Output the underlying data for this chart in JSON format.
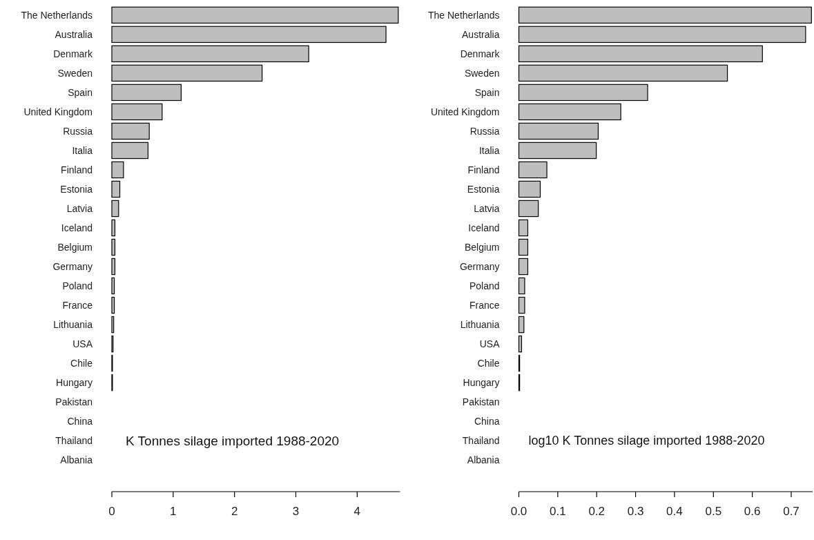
{
  "chart_data": [
    {
      "type": "bar",
      "orientation": "horizontal",
      "categories": [
        "The Netherlands",
        "Australia",
        "Denmark",
        "Sweden",
        "Spain",
        "United Kingdom",
        "Russia",
        "Italia",
        "Finland",
        "Estonia",
        "Latvia",
        "Iceland",
        "Belgium",
        "Germany",
        "Poland",
        "France",
        "Lithuania",
        "USA",
        "Chile",
        "Hungary",
        "Pakistan",
        "China",
        "Thailand",
        "Albania"
      ],
      "values": [
        4.67,
        4.47,
        3.21,
        2.45,
        1.13,
        0.82,
        0.61,
        0.59,
        0.19,
        0.13,
        0.11,
        0.05,
        0.05,
        0.05,
        0.04,
        0.04,
        0.03,
        0.02,
        0.01,
        0.01,
        0,
        0,
        0,
        0
      ],
      "color": "#bebebe",
      "xlim": [
        0,
        4.7
      ],
      "xticks": [
        0,
        1,
        2,
        3,
        4
      ],
      "grid": false,
      "annotations": [
        "K Tonnes silage imported 1988-2020"
      ]
    },
    {
      "type": "bar",
      "orientation": "horizontal",
      "categories": [
        "The Netherlands",
        "Australia",
        "Denmark",
        "Sweden",
        "Spain",
        "United Kingdom",
        "Russia",
        "Italia",
        "Finland",
        "Estonia",
        "Latvia",
        "Iceland",
        "Belgium",
        "Germany",
        "Poland",
        "France",
        "Lithuania",
        "USA",
        "Chile",
        "Hungary",
        "Pakistan",
        "China",
        "Thailand",
        "Albania"
      ],
      "values": [
        0.752,
        0.737,
        0.626,
        0.536,
        0.331,
        0.262,
        0.204,
        0.199,
        0.072,
        0.055,
        0.05,
        0.023,
        0.023,
        0.023,
        0.015,
        0.015,
        0.013,
        0.007,
        0.002,
        0.002,
        0,
        0,
        0,
        0
      ],
      "color": "#bebebe",
      "xlim": [
        0,
        0.755
      ],
      "xticks": [
        {
          "value": 0,
          "label": "0.0"
        },
        {
          "value": 0.1,
          "label": "0.1"
        },
        {
          "value": 0.2,
          "label": "0.2"
        },
        {
          "value": 0.3,
          "label": "0.3"
        },
        {
          "value": 0.4,
          "label": "0.4"
        },
        {
          "value": 0.5,
          "label": "0.5"
        },
        {
          "value": 0.6,
          "label": "0.6"
        },
        {
          "value": 0.7,
          "label": "0.7"
        }
      ],
      "grid": false,
      "annotations": [
        "log10 K Tonnes silage imported 1988-2020"
      ]
    }
  ]
}
